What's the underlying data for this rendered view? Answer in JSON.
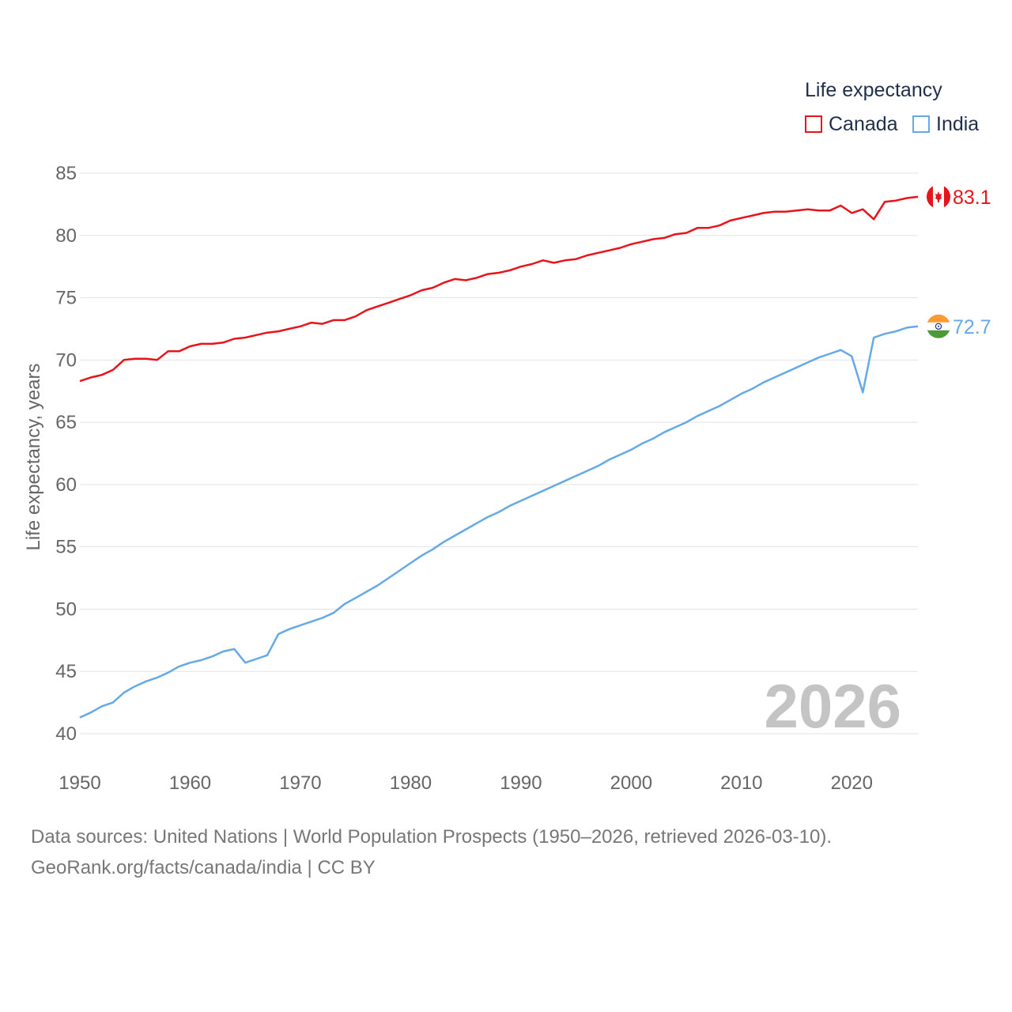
{
  "legend": {
    "title": "Life expectancy",
    "items": [
      {
        "label": "Canada",
        "color": "#e8141b"
      },
      {
        "label": "India",
        "color": "#65a9e6"
      }
    ]
  },
  "footer": {
    "line1": "Data sources: United Nations | World Population Prospects (1950–2026, retrieved 2026-03-10).",
    "line2": "GeoRank.org/facts/canada/india | CC BY"
  },
  "chart_data": {
    "type": "line",
    "title": "Life expectancy",
    "xlabel": "",
    "ylabel": "Life expectancy, years",
    "xlim": [
      1950,
      2026
    ],
    "ylim": [
      40,
      85
    ],
    "xticks": [
      1950,
      1960,
      1970,
      1980,
      1990,
      2000,
      2010,
      2020
    ],
    "yticks": [
      40,
      45,
      50,
      55,
      60,
      65,
      70,
      75,
      80,
      85
    ],
    "grid": true,
    "watermark": "2026",
    "x": [
      1950,
      1951,
      1952,
      1953,
      1954,
      1955,
      1956,
      1957,
      1958,
      1959,
      1960,
      1961,
      1962,
      1963,
      1964,
      1965,
      1966,
      1967,
      1968,
      1969,
      1970,
      1971,
      1972,
      1973,
      1974,
      1975,
      1976,
      1977,
      1978,
      1979,
      1980,
      1981,
      1982,
      1983,
      1984,
      1985,
      1986,
      1987,
      1988,
      1989,
      1990,
      1991,
      1992,
      1993,
      1994,
      1995,
      1996,
      1997,
      1998,
      1999,
      2000,
      2001,
      2002,
      2003,
      2004,
      2005,
      2006,
      2007,
      2008,
      2009,
      2010,
      2011,
      2012,
      2013,
      2014,
      2015,
      2016,
      2017,
      2018,
      2019,
      2020,
      2021,
      2022,
      2023,
      2024,
      2025,
      2026
    ],
    "series": [
      {
        "name": "Canada",
        "color": "#e8141b",
        "end_label": "83.1",
        "flag": "canada-flag",
        "values": [
          68.3,
          68.6,
          68.8,
          69.2,
          70.0,
          70.1,
          70.1,
          70.0,
          70.7,
          70.7,
          71.1,
          71.3,
          71.3,
          71.4,
          71.7,
          71.8,
          72.0,
          72.2,
          72.3,
          72.5,
          72.7,
          73.0,
          72.9,
          73.2,
          73.2,
          73.5,
          74.0,
          74.3,
          74.6,
          74.9,
          75.2,
          75.6,
          75.8,
          76.2,
          76.5,
          76.4,
          76.6,
          76.9,
          77.0,
          77.2,
          77.5,
          77.7,
          78.0,
          77.8,
          78.0,
          78.1,
          78.4,
          78.6,
          78.8,
          79.0,
          79.3,
          79.5,
          79.7,
          79.8,
          80.1,
          80.2,
          80.6,
          80.6,
          80.8,
          81.2,
          81.4,
          81.6,
          81.8,
          81.9,
          81.9,
          82.0,
          82.1,
          82.0,
          82.0,
          82.4,
          81.8,
          82.1,
          81.3,
          82.7,
          82.8,
          83.0,
          83.1
        ]
      },
      {
        "name": "India",
        "color": "#65a9e6",
        "end_label": "72.7",
        "flag": "india-flag",
        "values": [
          41.3,
          41.7,
          42.2,
          42.5,
          43.3,
          43.8,
          44.2,
          44.5,
          44.9,
          45.4,
          45.7,
          45.9,
          46.2,
          46.6,
          46.8,
          45.7,
          46.0,
          46.3,
          48.0,
          48.4,
          48.7,
          49.0,
          49.3,
          49.7,
          50.4,
          50.9,
          51.4,
          51.9,
          52.5,
          53.1,
          53.7,
          54.3,
          54.8,
          55.4,
          55.9,
          56.4,
          56.9,
          57.4,
          57.8,
          58.3,
          58.7,
          59.1,
          59.5,
          59.9,
          60.3,
          60.7,
          61.1,
          61.5,
          62.0,
          62.4,
          62.8,
          63.3,
          63.7,
          64.2,
          64.6,
          65.0,
          65.5,
          65.9,
          66.3,
          66.8,
          67.3,
          67.7,
          68.2,
          68.6,
          69.0,
          69.4,
          69.8,
          70.2,
          70.5,
          70.8,
          70.3,
          67.4,
          71.8,
          72.1,
          72.3,
          72.6,
          72.7
        ]
      }
    ]
  }
}
